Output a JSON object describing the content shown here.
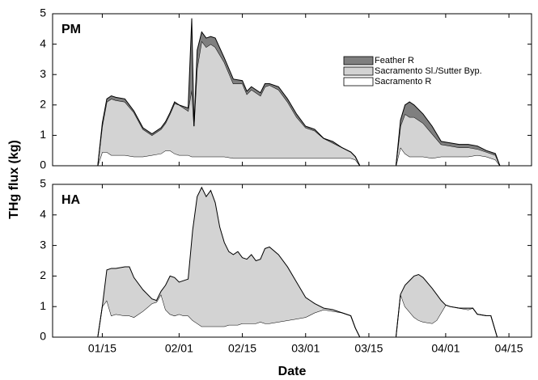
{
  "chart_data": [
    {
      "type": "stacked-area",
      "label": "PM",
      "y_label": "THg flux (kg)",
      "legend": "upper right",
      "x": [
        4,
        14,
        15,
        16,
        17,
        18,
        20,
        22,
        24,
        26,
        28,
        29,
        30,
        31,
        32,
        34,
        34.8,
        35.3,
        36,
        37,
        38,
        39,
        40,
        42,
        44,
        46,
        47,
        48,
        50,
        51,
        52,
        54,
        56,
        58,
        60,
        62,
        64,
        66,
        68,
        70,
        71,
        72,
        80,
        81,
        82,
        83,
        84,
        86,
        88,
        90,
        92,
        94,
        96,
        98,
        100,
        102,
        103,
        110
      ],
      "series": [
        {
          "name": "Sacramento R",
          "color": "#ffffff",
          "values": [
            0,
            0,
            0.45,
            0.45,
            0.35,
            0.35,
            0.35,
            0.3,
            0.3,
            0.35,
            0.4,
            0.5,
            0.5,
            0.4,
            0.35,
            0.35,
            0.3,
            0.3,
            0.3,
            0.3,
            0.3,
            0.3,
            0.3,
            0.3,
            0.25,
            0.25,
            0.25,
            0.25,
            0.25,
            0.25,
            0.25,
            0.25,
            0.25,
            0.25,
            0.25,
            0.25,
            0.25,
            0.25,
            0.25,
            0.25,
            0.2,
            0,
            0,
            0.6,
            0.4,
            0.3,
            0.3,
            0.3,
            0.25,
            0.3,
            0.3,
            0.3,
            0.3,
            0.35,
            0.3,
            0.2,
            0,
            0
          ]
        },
        {
          "name": "Sacramento Sl./Sutter Byp.",
          "color": "#d3d3d3",
          "values": [
            0,
            0,
            0.85,
            1.65,
            1.85,
            1.8,
            1.75,
            1.45,
            0.9,
            0.65,
            0.8,
            0.9,
            1.2,
            1.65,
            1.65,
            1.45,
            2.2,
            1.0,
            2.9,
            3.8,
            3.6,
            3.7,
            3.6,
            3.1,
            2.45,
            2.45,
            2.1,
            2.25,
            2.05,
            2.35,
            2.4,
            2.25,
            1.85,
            1.35,
            1.0,
            0.9,
            0.65,
            0.5,
            0.35,
            0.2,
            0.1,
            0,
            0,
            0.7,
            1.3,
            1.3,
            1.3,
            1.1,
            0.8,
            0.4,
            0.35,
            0.3,
            0.3,
            0.2,
            0.15,
            0.15,
            0,
            0
          ]
        },
        {
          "name": "Feather R",
          "color": "#7f7f7f",
          "values": [
            0,
            0,
            0.1,
            0.1,
            0.1,
            0.1,
            0.1,
            0.05,
            0.05,
            0.05,
            0.05,
            0.05,
            0.05,
            0.05,
            0,
            0.1,
            2.35,
            0,
            0.6,
            0.3,
            0.3,
            0.25,
            0.3,
            0.15,
            0.15,
            0.1,
            0.1,
            0.1,
            0.1,
            0.1,
            0.05,
            0.1,
            0.1,
            0.1,
            0.05,
            0.05,
            0,
            0.05,
            0,
            0,
            0,
            0,
            0,
            0.2,
            0.3,
            0.5,
            0.4,
            0.3,
            0.25,
            0.1,
            0.1,
            0.1,
            0.1,
            0.1,
            0.05,
            0.05,
            0,
            0
          ]
        }
      ],
      "xlim": [
        4,
        110
      ],
      "ylim": [
        0,
        5
      ],
      "yticks": [
        0,
        1,
        2,
        3,
        4,
        5
      ]
    },
    {
      "type": "stacked-area",
      "label": "HA",
      "x_label": "Date",
      "x": [
        4,
        14,
        15,
        16,
        17,
        18,
        20,
        21,
        22,
        24,
        26,
        27,
        28,
        29,
        30,
        31,
        32,
        33,
        34,
        35,
        36,
        37,
        38,
        39,
        40,
        41,
        42,
        43,
        44,
        45,
        46,
        47,
        48,
        49,
        50,
        51,
        52,
        54,
        56,
        58,
        60,
        62,
        64,
        66,
        68,
        70,
        71,
        72,
        80,
        81,
        82,
        84,
        85,
        86,
        88,
        89,
        90,
        91,
        92,
        94,
        96,
        97,
        98,
        100,
        101,
        102.4,
        103,
        110
      ],
      "series": [
        {
          "color": "#ffffff",
          "values": [
            0,
            0,
            1.0,
            1.2,
            0.7,
            0.75,
            0.7,
            0.7,
            0.65,
            0.85,
            1.1,
            1.15,
            1.4,
            0.9,
            0.75,
            0.7,
            0.75,
            0.7,
            0.7,
            0.55,
            0.45,
            0.35,
            0.35,
            0.35,
            0.35,
            0.35,
            0.35,
            0.4,
            0.4,
            0.4,
            0.45,
            0.45,
            0.45,
            0.45,
            0.5,
            0.45,
            0.45,
            0.5,
            0.55,
            0.6,
            0.65,
            0.8,
            0.9,
            0.85,
            0.8,
            0.7,
            0.3,
            0,
            0,
            1.4,
            1.0,
            0.65,
            0.55,
            0.5,
            0.45,
            0.55,
            0.8,
            1.05,
            1.0,
            0.95,
            0.9,
            0.95,
            0.75,
            0.7,
            0.7,
            0,
            0,
            0
          ]
        },
        {
          "color": "#d3d3d3",
          "values": [
            0,
            0,
            0,
            1.0,
            1.55,
            1.5,
            1.6,
            1.6,
            1.3,
            0.7,
            0.15,
            0.05,
            0.1,
            0.8,
            1.25,
            1.25,
            1.05,
            1.15,
            1.2,
            2.95,
            4.15,
            4.55,
            4.25,
            4.45,
            4.05,
            3.25,
            2.75,
            2.4,
            2.3,
            2.4,
            2.15,
            2.1,
            2.25,
            2.05,
            2.05,
            2.45,
            2.5,
            2.2,
            1.75,
            1.2,
            0.65,
            0.3,
            0.05,
            0.05,
            0,
            0,
            0,
            0,
            0,
            0,
            0.7,
            1.35,
            1.5,
            1.45,
            1.15,
            0.85,
            0.4,
            0,
            0,
            0,
            0.05,
            0,
            0,
            0,
            0,
            0,
            0,
            0
          ]
        }
      ],
      "xlim": [
        4,
        110
      ],
      "ylim": [
        0,
        5
      ],
      "yticks": [
        0,
        1,
        2,
        3,
        4,
        5
      ],
      "xticks": [
        {
          "value": 15,
          "label": "01/15"
        },
        {
          "value": 32,
          "label": "02/01"
        },
        {
          "value": 46,
          "label": "02/15"
        },
        {
          "value": 60,
          "label": "03/01"
        },
        {
          "value": 74,
          "label": "03/15"
        },
        {
          "value": 91,
          "label": "04/01"
        },
        {
          "value": 105,
          "label": "04/15"
        }
      ]
    }
  ]
}
